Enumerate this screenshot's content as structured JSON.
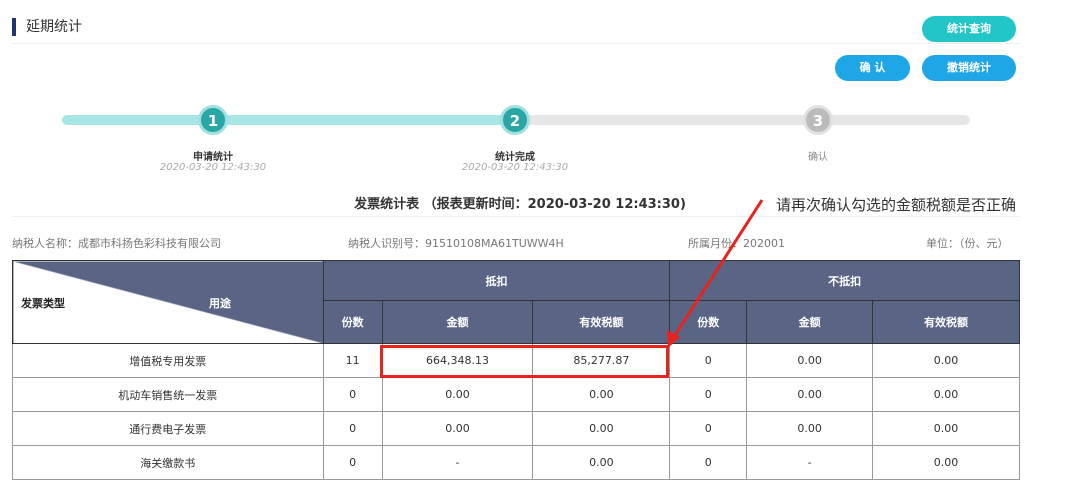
{
  "header": {
    "title": "延期统计",
    "query_button": "统计查询",
    "confirm_button": "确 认",
    "cancel_button": "撤销统计"
  },
  "steps": [
    {
      "num": "1",
      "label": "申请统计",
      "time": "2020-03-20 12:43:30",
      "status": "done"
    },
    {
      "num": "2",
      "label": "统计完成",
      "time": "2020-03-20 12:43:30",
      "status": "done"
    },
    {
      "num": "3",
      "label": "确认",
      "time": "",
      "status": "pending"
    }
  ],
  "report": {
    "title": "发票统计表 （报表更新时间：2020-03-20 12:43:30)",
    "taxpayer_name": "纳税人名称：成都市科扬色彩科技有限公司",
    "taxpayer_id": "纳税人识别号：91510108MA61TUWW4H",
    "month": "所属月份：202001",
    "unit": "单位：（份、元）"
  },
  "annotation": "请再次确认勾选的金额税额是否正确",
  "colors": {
    "accent_teal": "#23c6c8",
    "accent_blue": "#1ea6e6",
    "header_bg": "#5a6485",
    "highlight": "#e8231e"
  },
  "table": {
    "corner_left": "发票类型",
    "corner_right": "用途",
    "group_deduct": "抵扣",
    "group_nodeduct": "不抵扣",
    "cols": [
      "份数",
      "金额",
      "有效税额",
      "份数",
      "金额",
      "有效税额"
    ],
    "rows": [
      {
        "type": "增值税专用发票",
        "values": [
          "11",
          "664,348.13",
          "85,277.87",
          "0",
          "0.00",
          "0.00"
        ]
      },
      {
        "type": "机动车销售统一发票",
        "values": [
          "0",
          "0.00",
          "0.00",
          "0",
          "0.00",
          "0.00"
        ]
      },
      {
        "type": "通行费电子发票",
        "values": [
          "0",
          "0.00",
          "0.00",
          "0",
          "0.00",
          "0.00"
        ]
      },
      {
        "type": "海关缴款书",
        "values": [
          "0",
          "-",
          "0.00",
          "0",
          "-",
          "0.00"
        ]
      }
    ]
  }
}
